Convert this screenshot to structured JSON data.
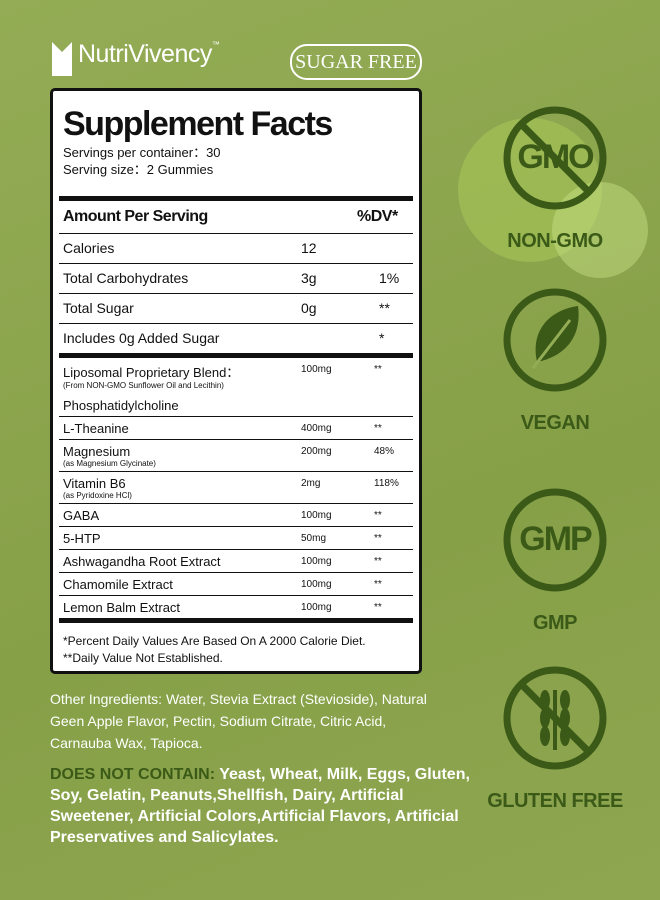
{
  "brand": {
    "name": "NutriVivency",
    "tm": "™"
  },
  "badge": "SUGAR FREE",
  "facts": {
    "title": "Supplement Facts",
    "servings": "Servings per container：30",
    "serving_size": "Serving size：2 Gummies",
    "header": {
      "amount": "Amount Per Serving",
      "dv": "%DV*"
    },
    "main_rows": [
      {
        "name": "Calories",
        "amount": "12"
      },
      {
        "name": "Total Carbohydrates",
        "amount": "3g",
        "dv": "1%"
      },
      {
        "name": "Total Sugar",
        "amount": "0g",
        "dv": "**"
      },
      {
        "name": "Includes 0g Added Sugar",
        "dv": "*"
      }
    ],
    "blend_rows": [
      {
        "name": "Liposomal Proprietary Blend：",
        "sub": "(From NON-GMO Sunflower Oil and Lecithin)",
        "extra": "Phosphatidylcholine",
        "amount": "100mg",
        "dv": "**"
      },
      {
        "name": "L-Theanine",
        "amount": "400mg",
        "dv": "**"
      },
      {
        "name": "Magnesium",
        "sub": "(as Magnesium Glycinate)",
        "amount": "200mg",
        "dv": "48%"
      },
      {
        "name": "Vitamin B6",
        "sub": "(as Pyridoxine HCl)",
        "amount": "2mg",
        "dv": "118%"
      },
      {
        "name": "GABA",
        "amount": "100mg",
        "dv": "**"
      },
      {
        "name": "5-HTP",
        "amount": "50mg",
        "dv": "**"
      },
      {
        "name": "Ashwagandha Root Extract",
        "amount": "100mg",
        "dv": "**"
      },
      {
        "name": "Chamomile Extract",
        "amount": "100mg",
        "dv": "**"
      },
      {
        "name": "Lemon Balm Extract",
        "amount": "100mg",
        "dv": "**"
      }
    ],
    "footnotes": [
      "*Percent Daily Values Are Based On A 2000 Calorie Diet.",
      "**Daily Value Not Established."
    ]
  },
  "other_ingredients": "Other Ingredients: Water, Stevia Extract (Stevioside), Natural Geen Apple Flavor, Pectin, Sodium Citrate, Citric Acid, Carnauba Wax, Tapioca.",
  "does_not_contain": {
    "label": "DOES NOT CONTAIN:",
    "text": "Yeast, Wheat, Milk, Eggs, Gluten, Soy, Gelatin, Peanuts,Shellfish, Dairy, Artificial Sweetener, Artificial Colors,Artificial Flavors, Artificial Preservatives and Salicylates."
  },
  "badges": [
    {
      "icon": "GMO",
      "label": "NON-GMO"
    },
    {
      "label": "VEGAN"
    },
    {
      "icon": "GMP",
      "label": "GMP"
    },
    {
      "label": "GLUTEN FREE"
    }
  ]
}
